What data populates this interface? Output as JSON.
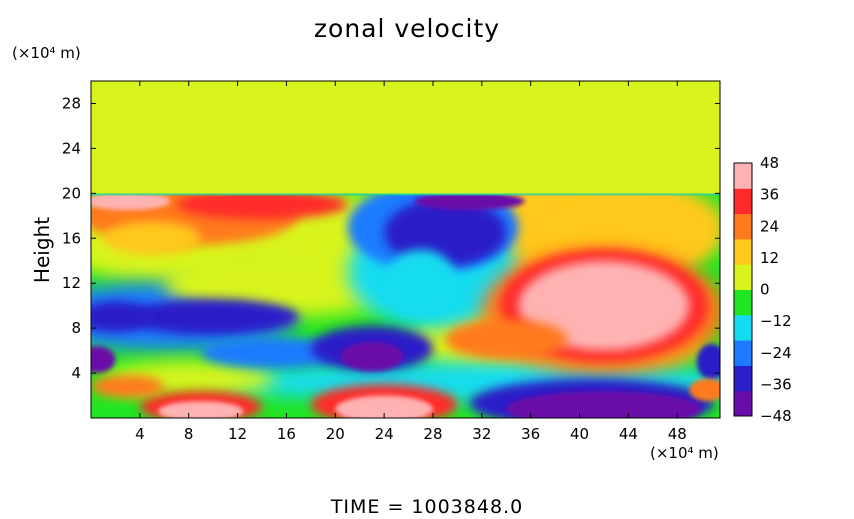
{
  "chart_data": {
    "type": "heatmap",
    "title": "zonal velocity",
    "ylabel": "Height",
    "xlabel": "",
    "x_unit": "(×10⁴ m)",
    "y_unit": "(×10⁴ m)",
    "xlim": [
      0,
      51.5
    ],
    "ylim": [
      0,
      30
    ],
    "x_ticks": [
      4,
      8,
      12,
      16,
      20,
      24,
      28,
      32,
      36,
      40,
      44,
      48
    ],
    "y_ticks": [
      4,
      8,
      12,
      16,
      20,
      24,
      28
    ],
    "colorbar": {
      "ticks": [
        48,
        36,
        24,
        12,
        0,
        -12,
        -24,
        -36,
        -48
      ],
      "range": [
        -48,
        48
      ],
      "colors": [
        "#6a0ca8",
        "#2a1fc8",
        "#1e7bff",
        "#14dcf0",
        "#22e522",
        "#d8f41c",
        "#ffc81e",
        "#ff7a1e",
        "#ff2b2b",
        "#ffb2b2"
      ]
    },
    "upper_layer": {
      "y_from": 20,
      "y_to": 30,
      "value": 6
    },
    "features": [
      {
        "x": 42,
        "y": 10,
        "value": 46,
        "note": "strong positive cell"
      },
      {
        "x": 42,
        "y": 1,
        "value": -48,
        "note": "strong negative cell"
      },
      {
        "x": 23,
        "y": 5.5,
        "value": -46,
        "note": "negative core"
      },
      {
        "x": 24,
        "y": 1.5,
        "value": 44,
        "note": "positive cell near surface"
      },
      {
        "x": 9,
        "y": 1,
        "value": 42,
        "note": "positive cell near surface"
      },
      {
        "x": 28,
        "y": 17,
        "value": -38,
        "note": "negative region"
      },
      {
        "x": 6,
        "y": 18,
        "value": 30,
        "note": "positive region"
      }
    ]
  },
  "footer": {
    "time_text": "TIME  =  1003848.0"
  }
}
